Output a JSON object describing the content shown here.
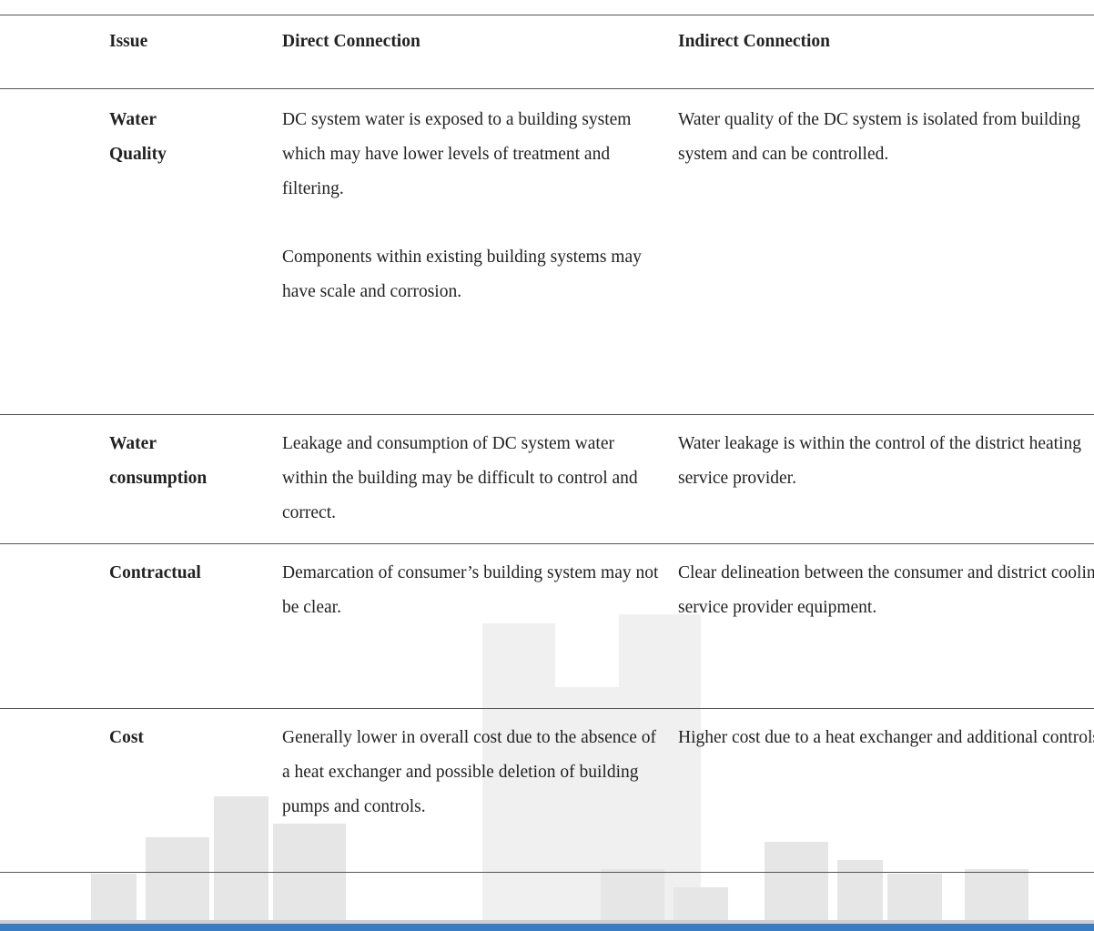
{
  "table": {
    "header": [
      "Issue",
      "Direct Connection",
      "Indirect Connection"
    ],
    "rows": [
      {
        "issue": [
          "Water",
          "Quality"
        ],
        "direct": [
          "DC system water is exposed to a building system which may have lower levels of treatment and filtering.",
          "Components within existing building systems may have scale and corrosion."
        ],
        "indirect": [
          "Water quality of the DC system is isolated from building system and can be controlled."
        ]
      },
      {
        "issue": [
          "Water",
          "consumption"
        ],
        "direct": [
          "Leakage and consumption of DC system water within the building may be difficult to control and correct."
        ],
        "indirect": [
          "Water leakage is within the control of the district heating service provider."
        ]
      },
      {
        "issue": [
          "Contractual"
        ],
        "direct": [
          "Demarcation of consumer’s building system may not be clear."
        ],
        "indirect": [
          "Clear delineation between the consumer and district cooling service provider equipment."
        ]
      },
      {
        "issue": [
          "Cost"
        ],
        "direct": [
          "Generally lower in overall cost due to the absence of a heat exchanger and possible deletion of building pumps and controls."
        ],
        "indirect": [
          "Higher cost due to a heat exchanger and additional controls."
        ]
      }
    ]
  }
}
